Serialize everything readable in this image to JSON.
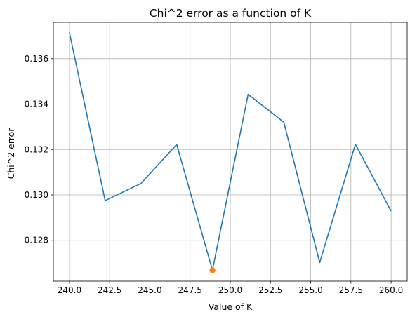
{
  "chart_data": {
    "type": "line",
    "title": "Chi^2 error as a function of K",
    "xlabel": "Value of K",
    "ylabel": "Chi^2 error",
    "xlim": [
      239.0,
      261.0
    ],
    "ylim": [
      0.1262,
      0.1376
    ],
    "grid": true,
    "x_ticks": [
      240.0,
      242.5,
      245.0,
      247.5,
      250.0,
      252.5,
      255.0,
      257.5,
      260.0
    ],
    "x_tick_labels": [
      "240.0",
      "242.5",
      "245.0",
      "247.5",
      "250.0",
      "252.5",
      "255.0",
      "257.5",
      "260.0"
    ],
    "y_ticks": [
      0.128,
      0.13,
      0.132,
      0.134,
      0.136
    ],
    "y_tick_labels": [
      "0.128",
      "0.130",
      "0.132",
      "0.134",
      "0.136"
    ],
    "series": [
      {
        "x": [
          240.0,
          242.22,
          244.44,
          246.67,
          248.89,
          251.11,
          253.33,
          255.56,
          257.78,
          260.0
        ],
        "values": [
          0.13715,
          0.12975,
          0.1305,
          0.13222,
          0.12668,
          0.13443,
          0.1332,
          0.12702,
          0.13223,
          0.12929
        ],
        "color": "#1f77b4"
      }
    ],
    "highlight_point": {
      "x": 248.89,
      "y": 0.12668,
      "color": "#ff7f0e"
    }
  }
}
